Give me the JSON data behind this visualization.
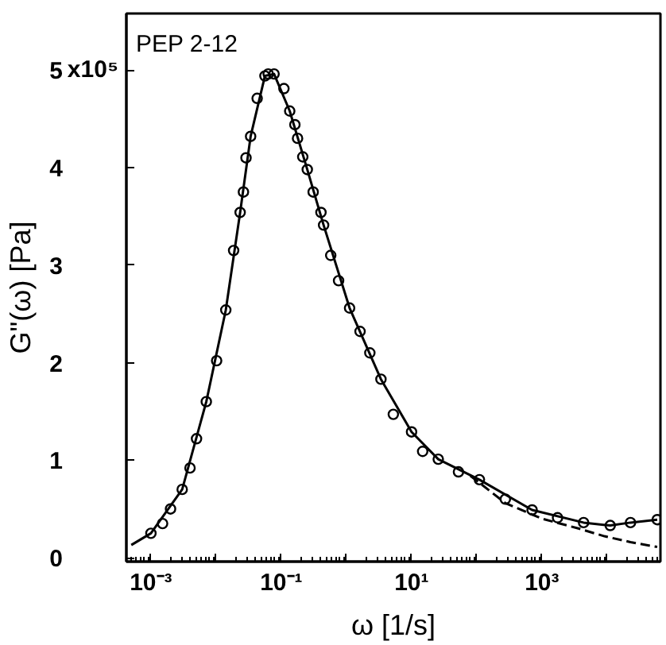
{
  "chart_data": {
    "type": "scatter",
    "xlabel": "ω [1/s]",
    "ylabel": "G\"(ω) [Pa]",
    "annotations": [
      "PEP 2-12",
      "x10⁵"
    ],
    "log": "x",
    "grid": false,
    "xlim": [
      0.00042,
      66000
    ],
    "ylim": [
      -0.04,
      5.58
    ],
    "xticks": [
      {
        "value": 0.001,
        "label": "10⁻³"
      },
      {
        "value": 0.01,
        "label": null
      },
      {
        "value": 0.1,
        "label": "10⁻¹"
      },
      {
        "value": 1,
        "label": null
      },
      {
        "value": 10,
        "label": "10¹"
      },
      {
        "value": 100,
        "label": null
      },
      {
        "value": 1000,
        "label": "10³"
      },
      {
        "value": 10000,
        "label": null
      }
    ],
    "yticks": [
      0,
      1,
      2,
      3,
      4,
      5
    ],
    "series": [
      {
        "marker": "circle",
        "color": "#000000",
        "x": [
          0.001,
          0.00151,
          0.002,
          0.00302,
          0.00398,
          0.00501,
          0.00708,
          0.0102,
          0.0141,
          0.0186,
          0.0234,
          0.0263,
          0.0288,
          0.0339,
          0.0427,
          0.0562,
          0.0631,
          0.0776,
          0.11,
          0.135,
          0.162,
          0.178,
          0.214,
          0.251,
          0.309,
          0.407,
          0.447,
          0.575,
          0.759,
          1.12,
          1.62,
          2.29,
          3.39,
          5.25,
          10,
          14.8,
          25.7,
          52.5,
          110,
          275,
          708,
          1740,
          4370,
          11200,
          22900,
          58900
        ],
        "values": [
          0.25,
          0.35,
          0.5,
          0.7,
          0.92,
          1.22,
          1.6,
          2.02,
          2.54,
          3.15,
          3.54,
          3.75,
          4.1,
          4.32,
          4.71,
          4.94,
          4.96,
          4.96,
          4.81,
          4.58,
          4.44,
          4.3,
          4.11,
          3.98,
          3.75,
          3.54,
          3.41,
          3.1,
          2.84,
          2.56,
          2.32,
          2.1,
          1.83,
          1.47,
          1.29,
          1.09,
          1.01,
          0.88,
          0.8,
          0.6,
          0.49,
          0.41,
          0.36,
          0.33,
          0.36,
          0.39
        ]
      },
      {
        "type": "line",
        "line_style": "solid",
        "marker": "none",
        "color": "#000000",
        "x": [
          0.0005,
          0.001,
          0.00302,
          0.00708,
          0.0141,
          0.0234,
          0.0339,
          0.0562,
          0.0776,
          0.135,
          0.251,
          0.447,
          1.12,
          3.39,
          10,
          25.7,
          110,
          708,
          4370,
          11200,
          22900,
          58900
        ],
        "values": [
          0.13,
          0.25,
          0.7,
          1.6,
          2.54,
          3.54,
          4.32,
          4.94,
          4.96,
          4.58,
          3.98,
          3.41,
          2.56,
          1.83,
          1.29,
          1.01,
          0.8,
          0.49,
          0.36,
          0.33,
          0.36,
          0.39
        ]
      },
      {
        "type": "line",
        "line_style": "dashed",
        "marker": "none",
        "color": "#000000",
        "x": [
          80,
          275,
          1000,
          3630,
          9120,
          22900,
          58900
        ],
        "values": [
          0.84,
          0.56,
          0.4,
          0.3,
          0.22,
          0.16,
          0.11
        ]
      }
    ]
  }
}
